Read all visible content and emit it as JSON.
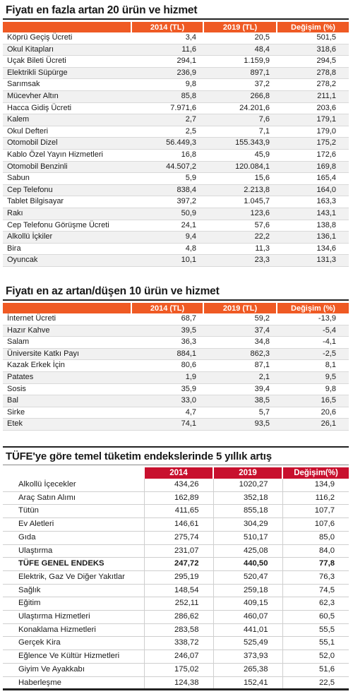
{
  "table1": {
    "title": "Fiyatı en fazla artan 20 ürün ve hizmet",
    "headers": [
      "",
      "2014 (TL)",
      "2019 (TL)",
      "Değişim (%)"
    ],
    "rows": [
      [
        "Köprü Geçiş Ücreti",
        "3,4",
        "20,5",
        "501,5"
      ],
      [
        "Okul Kitapları",
        "11,6",
        "48,4",
        "318,6"
      ],
      [
        "Uçak Bileti Ücreti",
        "294,1",
        "1.159,9",
        "294,5"
      ],
      [
        "Elektrikli Süpürge",
        "236,9",
        "897,1",
        "278,8"
      ],
      [
        "Sarımsak",
        "9,8",
        "37,2",
        "278,2"
      ],
      [
        "Mücevher Altın",
        "85,8",
        "266,8",
        "211,1"
      ],
      [
        "Hacca Gidiş Ücreti",
        "7.971,6",
        "24.201,6",
        "203,6"
      ],
      [
        "Kalem",
        "2,7",
        "7,6",
        "179,1"
      ],
      [
        "Okul Defteri",
        "2,5",
        "7,1",
        "179,0"
      ],
      [
        "Otomobil Dizel",
        "56.449,3",
        "155.343,9",
        "175,2"
      ],
      [
        "Kablo Özel Yayın Hizmetleri",
        "16,8",
        "45,9",
        "172,6"
      ],
      [
        "Otomobil Benzinli",
        "44.507,2",
        "120.084,1",
        "169,8"
      ],
      [
        "Sabun",
        "5,9",
        "15,6",
        "165,4"
      ],
      [
        "Cep Telefonu",
        "838,4",
        "2.213,8",
        "164,0"
      ],
      [
        "Tablet Bilgisayar",
        "397,2",
        "1.045,7",
        "163,3"
      ],
      [
        "Rakı",
        "50,9",
        "123,6",
        "143,1"
      ],
      [
        "Cep Telefonu Görüşme Ücreti",
        "24,1",
        "57,6",
        "138,8"
      ],
      [
        "Alkollü İçkiler",
        "9,4",
        "22,2",
        "136,1"
      ],
      [
        "Bira",
        "4,8",
        "11,3",
        "134,6"
      ],
      [
        "Oyuncak",
        "10,1",
        "23,3",
        "131,3"
      ]
    ]
  },
  "table2": {
    "title": "Fiyatı en az artan/düşen 10 ürün ve hizmet",
    "headers": [
      "",
      "2014 (TL)",
      "2019 (TL)",
      "Değişim (%)"
    ],
    "rows": [
      [
        "İnternet Ücreti",
        "68,7",
        "59,2",
        "-13,9"
      ],
      [
        "Hazır Kahve",
        "39,5",
        "37,4",
        "-5,4"
      ],
      [
        "Salam",
        "36,3",
        "34,8",
        "-4,1"
      ],
      [
        "Üniversite Katkı Payı",
        "884,1",
        "862,3",
        "-2,5"
      ],
      [
        "Kazak Erkek İçin",
        "80,6",
        "87,1",
        "8,1"
      ],
      [
        "Patates",
        "1,9",
        "2,1",
        "9,5"
      ],
      [
        "Sosis",
        "35,9",
        "39,4",
        "9,8"
      ],
      [
        "Bal",
        "33,0",
        "38,5",
        "16,5"
      ],
      [
        "Sirke",
        "4,7",
        "5,7",
        "20,6"
      ],
      [
        "Etek",
        "74,1",
        "93,5",
        "26,1"
      ]
    ]
  },
  "table3": {
    "title": "TÜFE'ye göre temel tüketim endekslerinde 5 yıllık artış",
    "headers": [
      "",
      "2014",
      "2019",
      "Değişim(%)"
    ],
    "rows": [
      [
        "Alkollü İçecekler",
        "434,26",
        "1020,27",
        "134,9"
      ],
      [
        "Araç Satın Alımı",
        "162,89",
        "352,18",
        "116,2"
      ],
      [
        "Tütün",
        "411,65",
        "855,18",
        "107,7"
      ],
      [
        "Ev Aletleri",
        "146,61",
        "304,29",
        "107,6"
      ],
      [
        "Gıda",
        "275,74",
        "510,17",
        "85,0"
      ],
      [
        "Ulaştırma",
        "231,07",
        "425,08",
        "84,0"
      ],
      [
        "TÜFE GENEL ENDEKS",
        "247,72",
        "440,50",
        "77,8"
      ],
      [
        "Elektrik, Gaz Ve Diğer Yakıtlar",
        "295,19",
        "520,47",
        "76,3"
      ],
      [
        "Sağlık",
        "148,54",
        "259,18",
        "74,5"
      ],
      [
        "Eğitim",
        "252,11",
        "409,15",
        "62,3"
      ],
      [
        "Ulaştırma Hizmetleri",
        "286,62",
        "460,07",
        "60,5"
      ],
      [
        "Konaklama Hizmetleri",
        "283,58",
        "441,01",
        "55,5"
      ],
      [
        "Gerçek Kira",
        "338,72",
        "525,49",
        "55,1"
      ],
      [
        "Eğlence Ve Kültür Hizmetleri",
        "246,07",
        "373,93",
        "52,0"
      ],
      [
        "Giyim Ve Ayakkabı",
        "175,02",
        "265,38",
        "51,6"
      ],
      [
        "Haberleşme",
        "124,38",
        "152,41",
        "22,5"
      ]
    ],
    "bold_row": "TÜFE GENEL ENDEKS"
  },
  "colors": {
    "header_orange": "#ef5a24",
    "header_red": "#c8102e",
    "row_alt": "#f1f1f1"
  }
}
